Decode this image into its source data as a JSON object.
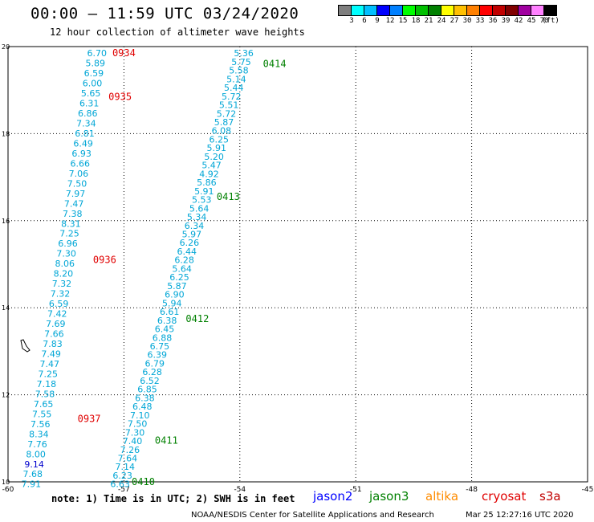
{
  "title": "00:00 – 11:59 UTC 03/24/2020",
  "subtitle": "12 hour collection of altimeter wave heights",
  "color_scale": {
    "colors": [
      "#7f7f7f",
      "#00ffff",
      "#00bfff",
      "#0000ff",
      "#0080ff",
      "#00ff00",
      "#00c000",
      "#008000",
      "#ffff00",
      "#ffc000",
      "#ff8000",
      "#ff0000",
      "#c00000",
      "#800000",
      "#a000a0",
      "#ff80ff",
      "#000000"
    ],
    "labels": [
      "3",
      "6",
      "9",
      "12",
      "15",
      "18",
      "21",
      "24",
      "27",
      "30",
      "33",
      "36",
      "39",
      "42",
      "45",
      "70",
      "(ft)"
    ]
  },
  "map": {
    "lon_ticks": [
      "-60",
      "-57",
      "-54",
      "-51",
      "-48",
      "-45"
    ],
    "lat_ticks": [
      "20",
      "18",
      "16",
      "14",
      "12",
      "10"
    ],
    "lon_range": [
      -60,
      -45
    ],
    "lat_range": [
      10,
      20
    ]
  },
  "tracks": [
    {
      "name": "track-west",
      "color": "#00a6d6",
      "values": [
        "6.70",
        "5.89",
        "6.59",
        "6.00",
        "5.65",
        "6.31",
        "6.86",
        "7.34",
        "6.81",
        "6.49",
        "6.93",
        "6.66",
        "7.06",
        "7.50",
        "7.97",
        "7.47",
        "7.38",
        "8.31",
        "7.25",
        "6.96",
        "7.30",
        "8.06",
        "8.20",
        "7.32",
        "7.32",
        "6.59",
        "7.42",
        "7.69",
        "7.66",
        "7.83",
        "7.49",
        "7.47",
        "7.25",
        "7.18",
        "7.58",
        "7.65",
        "7.55",
        "7.56",
        "8.34",
        "7.76",
        "8.00",
        "9.14",
        "7.68",
        "7.91"
      ],
      "value_colors": {
        "9.14": "#0000cc"
      },
      "lon_top": -57.7,
      "lon_bottom": -59.4
    },
    {
      "name": "track-east",
      "color": "#00a6d6",
      "values": [
        "5.36",
        "5.75",
        "5.58",
        "5.14",
        "5.44",
        "5.72",
        "5.51",
        "5.72",
        "5.87",
        "6.08",
        "6.25",
        "5.91",
        "5.20",
        "5.47",
        "4.92",
        "5.86",
        "5.91",
        "5.53",
        "5.64",
        "5.34",
        "6.34",
        "5.97",
        "6.26",
        "6.44",
        "6.28",
        "5.64",
        "6.25",
        "5.87",
        "6.90",
        "5.94",
        "6.61",
        "6.38",
        "6.45",
        "6.88",
        "6.75",
        "6.39",
        "6.79",
        "6.28",
        "6.52",
        "6.85",
        "6.38",
        "6.48",
        "7.10",
        "7.50",
        "7.30",
        "7.40",
        "7.26",
        "7.64",
        "7.14",
        "6.23",
        "6.63"
      ],
      "lon_top": -53.9,
      "lon_bottom": -57.1
    }
  ],
  "time_labels": [
    {
      "text": "0934",
      "color": "#e00000",
      "lon": -57.3,
      "lat": 19.85
    },
    {
      "text": "0935",
      "color": "#e00000",
      "lon": -57.4,
      "lat": 18.85
    },
    {
      "text": "0936",
      "color": "#e00000",
      "lon": -57.8,
      "lat": 15.1
    },
    {
      "text": "0937",
      "color": "#e00000",
      "lon": -58.2,
      "lat": 11.45
    },
    {
      "text": "0414",
      "color": "#008000",
      "lon": -53.4,
      "lat": 19.6
    },
    {
      "text": "0413",
      "color": "#008000",
      "lon": -54.6,
      "lat": 16.55
    },
    {
      "text": "0412",
      "color": "#008000",
      "lon": -55.4,
      "lat": 13.75
    },
    {
      "text": "0411",
      "color": "#008000",
      "lon": -56.2,
      "lat": 10.95
    },
    {
      "text": "0410",
      "color": "#008000",
      "lon": -56.8,
      "lat": 10.0
    }
  ],
  "note": "note: 1) Time is in UTC; 2) SWH is in feet",
  "legend": [
    {
      "label": "jason2",
      "color": "#0000ff"
    },
    {
      "label": "jason3",
      "color": "#008000"
    },
    {
      "label": "altika",
      "color": "#ff8c00"
    },
    {
      "label": "cryosat",
      "color": "#e00000"
    },
    {
      "label": "s3a",
      "color": "#c00000"
    }
  ],
  "credit": "NOAA/NESDIS Center for Satellite Applications and Research",
  "timestamp": "Mar 25 12:27:16 UTC 2020"
}
